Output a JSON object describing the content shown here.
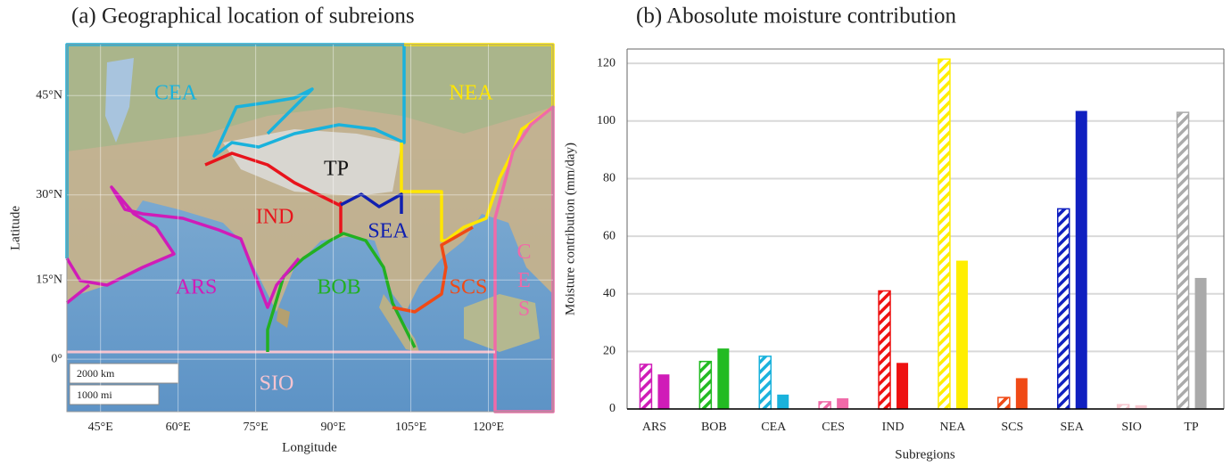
{
  "map": {
    "title": "(a) Geographical location of subreions",
    "x_label": "Longitude",
    "y_label": "Latitude",
    "xlim": [
      38.5,
      132.5
    ],
    "ylim": [
      -10,
      51.5
    ],
    "xticks": [
      {
        "value": 45,
        "label": "45°E"
      },
      {
        "value": 60,
        "label": "60°E"
      },
      {
        "value": 75,
        "label": "75°E"
      },
      {
        "value": 90,
        "label": "90°E"
      },
      {
        "value": 105,
        "label": "105°E"
      },
      {
        "value": 120,
        "label": "120°E"
      }
    ],
    "yticks": [
      {
        "value": 45,
        "label": "45°N"
      },
      {
        "value": 30,
        "label": "30°N"
      },
      {
        "value": 15,
        "label": "15°N"
      },
      {
        "value": 0,
        "label": "0°"
      }
    ],
    "regions": [
      {
        "label": "CEA",
        "color": "#1ab2dc"
      },
      {
        "label": "NEA",
        "color": "#ffe600"
      },
      {
        "label": "TP",
        "color": "#111111"
      },
      {
        "label": "IND",
        "color": "#e8141c"
      },
      {
        "label": "SEA",
        "color": "#1020b0"
      },
      {
        "label": "ARS",
        "color": "#d01cb8"
      },
      {
        "label": "BOB",
        "color": "#22b022"
      },
      {
        "label": "SCS",
        "color": "#f04a16"
      },
      {
        "label": "CES",
        "color": "#f06aa8"
      },
      {
        "label": "SIO",
        "color": "#f6c4d0"
      }
    ],
    "scale_labels": [
      "2000 km",
      "1000 mi"
    ]
  },
  "chart_data": {
    "type": "bar",
    "title": "(b) Abosolute moisture contribution",
    "x_label": "Subregions",
    "y_label": "Moisture contribution (mm/day)",
    "categories": [
      "ARS",
      "BOB",
      "CEA",
      "CES",
      "IND",
      "NEA",
      "SCS",
      "SEA",
      "SIO",
      "TP"
    ],
    "colors": [
      "#d01cb8",
      "#22bb22",
      "#1ab2dc",
      "#f06aa8",
      "#ee1111",
      "#ffee00",
      "#f04a16",
      "#1020c0",
      "#f8c8d0",
      "#aaaaaa"
    ],
    "series": [
      {
        "hatched": true,
        "values": [
          15.5,
          16.5,
          18.3,
          2.5,
          41,
          121.5,
          4,
          69.5,
          1.5,
          103
        ]
      },
      {
        "hatched": false,
        "values": [
          12,
          21,
          5,
          3.7,
          16,
          51.5,
          10.7,
          103.5,
          1.3,
          45.5
        ]
      }
    ],
    "ylim": [
      0,
      125
    ],
    "yticks": [
      0,
      20,
      40,
      60,
      80,
      100,
      120
    ],
    "grid": true
  }
}
